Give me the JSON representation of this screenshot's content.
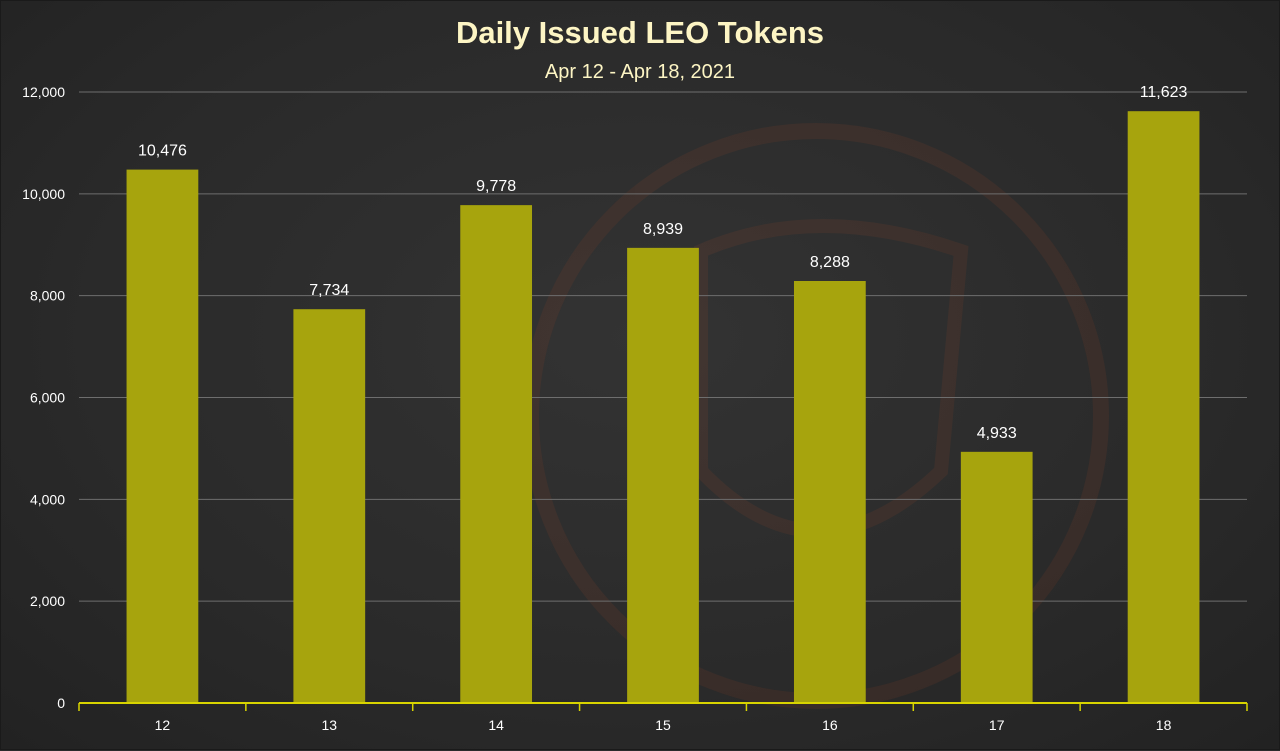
{
  "chart_data": {
    "type": "bar",
    "title": "Daily Issued LEO Tokens",
    "subtitle": "Apr 12 - Apr 18, 2021",
    "categories": [
      "12",
      "13",
      "14",
      "15",
      "16",
      "17",
      "18"
    ],
    "values": [
      10476,
      7734,
      9778,
      8939,
      8288,
      4933,
      11623
    ],
    "value_labels": [
      "10,476",
      "7,734",
      "9,778",
      "8,939",
      "8,288",
      "4,933",
      "11,623"
    ],
    "yticks": [
      0,
      2000,
      4000,
      6000,
      8000,
      10000,
      12000
    ],
    "ytick_labels": [
      "0",
      "2,000",
      "4,000",
      "6,000",
      "8,000",
      "10,000",
      "12,000"
    ],
    "ylim": [
      0,
      12000
    ],
    "xlabel": "",
    "ylabel": "",
    "grid": true,
    "bar_color": "#a7a40d",
    "axis_color": "#d8d400",
    "grid_color": "#6e6e6e"
  }
}
